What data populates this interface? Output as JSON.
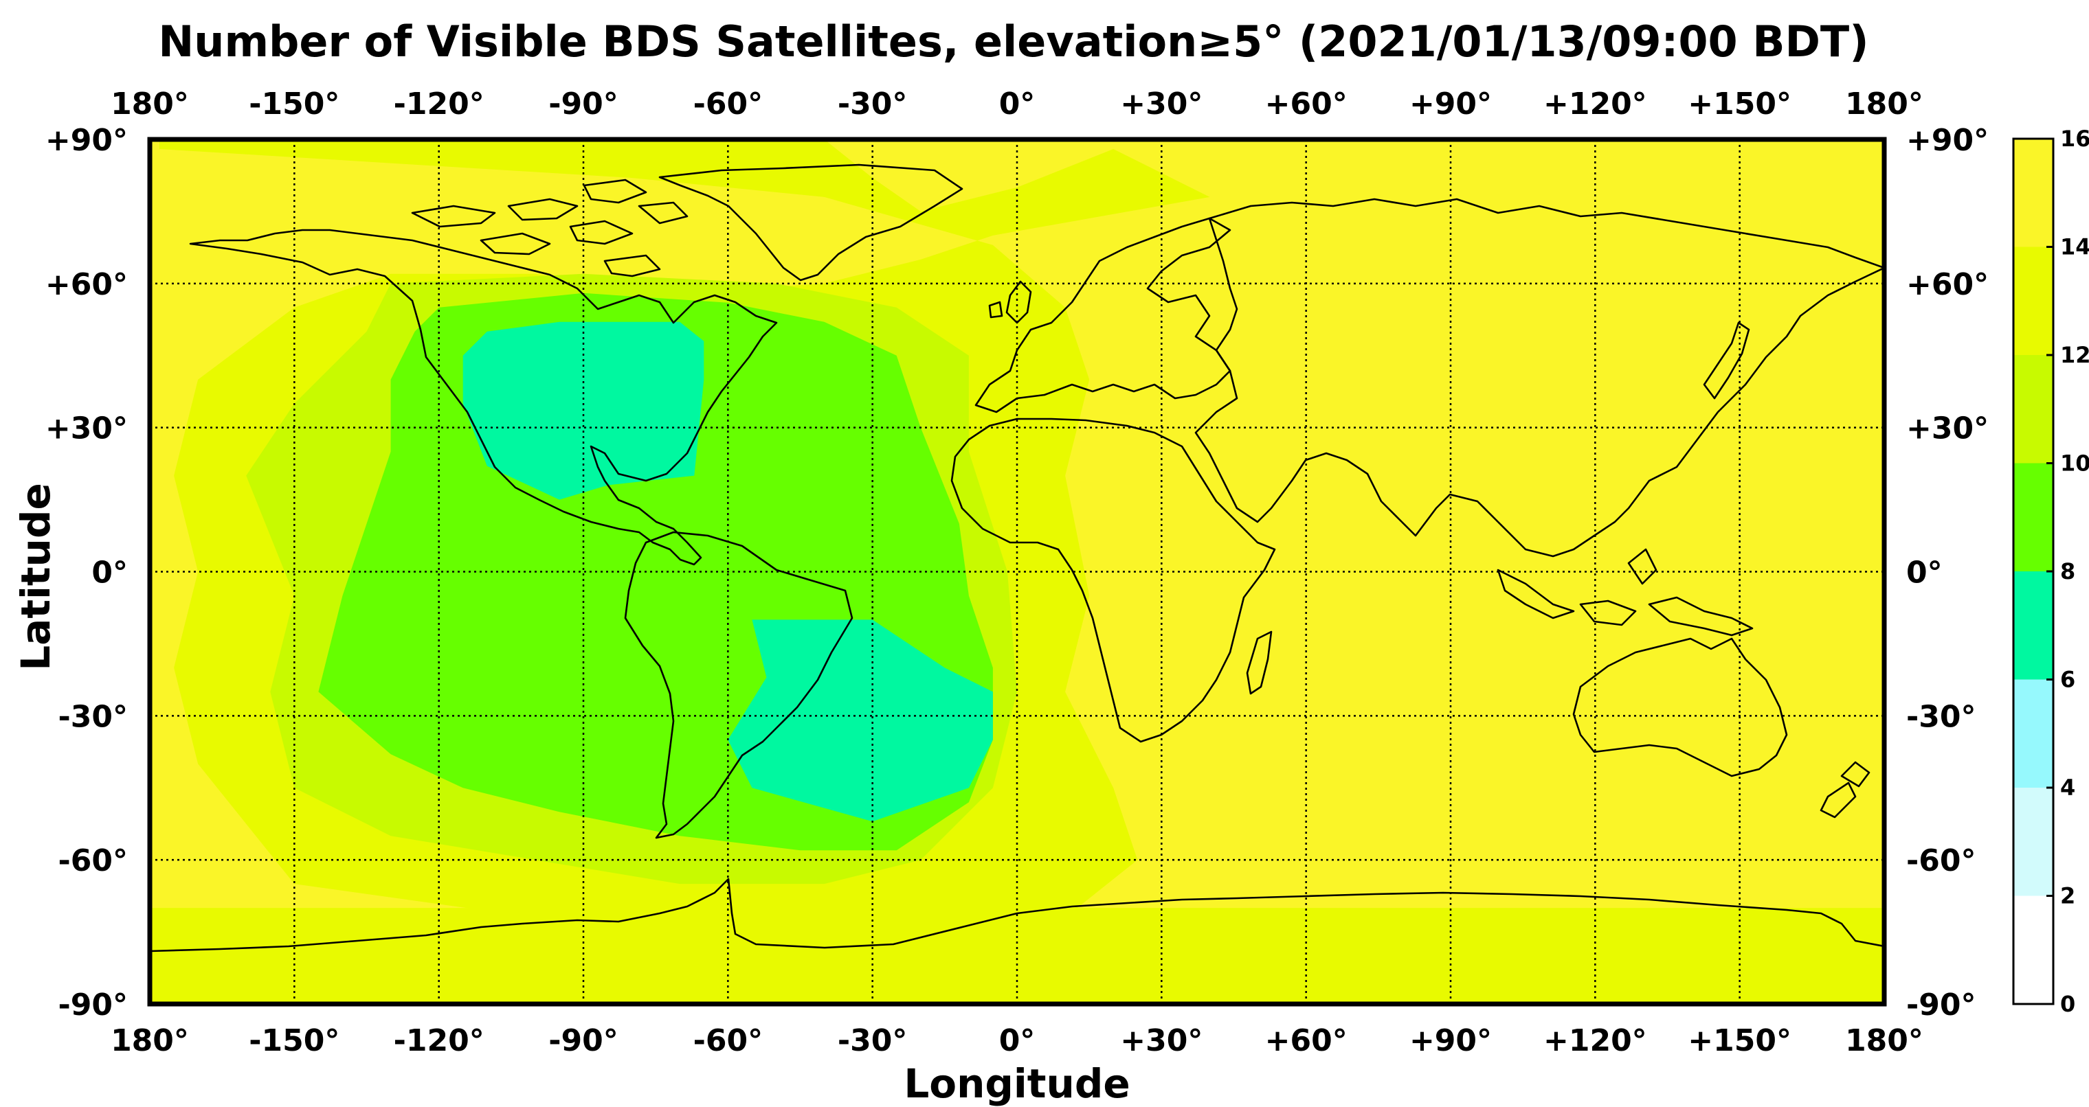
{
  "title": "Number of Visible BDS Satellites, elevation≥5° (2021/01/13/09:00 BDT)",
  "xlabel": "Longitude",
  "ylabel": "Latitude",
  "lon_ticks": [
    {
      "value": -180,
      "label": "180°"
    },
    {
      "value": -150,
      "label": "-150°"
    },
    {
      "value": -120,
      "label": "-120°"
    },
    {
      "value": -90,
      "label": "-90°"
    },
    {
      "value": -60,
      "label": "-60°"
    },
    {
      "value": -30,
      "label": "-30°"
    },
    {
      "value": 0,
      "label": "0°"
    },
    {
      "value": 30,
      "label": "+30°"
    },
    {
      "value": 60,
      "label": "+60°"
    },
    {
      "value": 90,
      "label": "+90°"
    },
    {
      "value": 120,
      "label": "+120°"
    },
    {
      "value": 150,
      "label": "+150°"
    },
    {
      "value": 180,
      "label": "180°"
    }
  ],
  "lat_ticks": [
    {
      "value": 90,
      "label": "+90°"
    },
    {
      "value": 60,
      "label": "+60°"
    },
    {
      "value": 30,
      "label": "+30°"
    },
    {
      "value": 0,
      "label": "0°"
    },
    {
      "value": -30,
      "label": "-30°"
    },
    {
      "value": -60,
      "label": "-60°"
    },
    {
      "value": -90,
      "label": "-90°"
    }
  ],
  "colorbar": {
    "range": [
      0,
      16
    ],
    "ticks": [
      "0",
      "2",
      "4",
      "6",
      "8",
      "10",
      "12",
      "14",
      "16"
    ],
    "bins": [
      {
        "min": 0,
        "max": 2,
        "color": "#ffffff"
      },
      {
        "min": 2,
        "max": 4,
        "color": "#d2fbfc"
      },
      {
        "min": 4,
        "max": 6,
        "color": "#96f9fd"
      },
      {
        "min": 6,
        "max": 8,
        "color": "#00f8a0"
      },
      {
        "min": 8,
        "max": 10,
        "color": "#66ff00"
      },
      {
        "min": 10,
        "max": 12,
        "color": "#c8fa00"
      },
      {
        "min": 12,
        "max": 14,
        "color": "#e8fa00"
      },
      {
        "min": 14,
        "max": 16,
        "color": "#faf528"
      }
    ]
  },
  "chart_data": {
    "type": "heatmap",
    "title": "Number of Visible BDS Satellites, elevation≥5° (2021/01/13/09:00 BDT)",
    "xlabel": "Longitude",
    "ylabel": "Latitude",
    "xlim": [
      -180,
      180
    ],
    "ylim": [
      -90,
      90
    ],
    "grid": true,
    "projection": "equirectangular with coastlines",
    "colorbar_range": [
      0,
      16
    ],
    "regions": [
      {
        "description": "background",
        "value": 15
      },
      {
        "value": 13,
        "polygon": [
          [
            -178,
            90
          ],
          [
            -40,
            90
          ],
          [
            -30,
            82
          ],
          [
            -20,
            75
          ],
          [
            0,
            80
          ],
          [
            20,
            88
          ],
          [
            40,
            78
          ],
          [
            -5,
            70
          ],
          [
            -20,
            65
          ],
          [
            -40,
            60
          ],
          [
            -70,
            58
          ],
          [
            -100,
            62
          ],
          [
            -130,
            62
          ],
          [
            -150,
            55
          ],
          [
            -170,
            40
          ],
          [
            -175,
            20
          ],
          [
            -170,
            0
          ],
          [
            -175,
            -20
          ],
          [
            -170,
            -40
          ],
          [
            -150,
            -65
          ],
          [
            -100,
            -72
          ],
          [
            -60,
            -80
          ],
          [
            -20,
            -75
          ],
          [
            10,
            -72
          ],
          [
            25,
            -60
          ],
          [
            20,
            -45
          ],
          [
            10,
            -25
          ],
          [
            15,
            -5
          ],
          [
            10,
            20
          ],
          [
            15,
            40
          ],
          [
            10,
            55
          ],
          [
            -5,
            68
          ],
          [
            -40,
            78
          ],
          [
            -80,
            82
          ],
          [
            -178,
            88
          ]
        ]
      },
      {
        "value": 13,
        "polygon": [
          [
            -180,
            -70
          ],
          [
            180,
            -70
          ],
          [
            180,
            -90
          ],
          [
            -180,
            -90
          ]
        ]
      },
      {
        "value": 11,
        "polygon": [
          [
            -130,
            60
          ],
          [
            -90,
            62
          ],
          [
            -50,
            60
          ],
          [
            -25,
            55
          ],
          [
            -10,
            45
          ],
          [
            -10,
            25
          ],
          [
            -2,
            0
          ],
          [
            0,
            -25
          ],
          [
            -5,
            -45
          ],
          [
            -20,
            -60
          ],
          [
            -40,
            -65
          ],
          [
            -70,
            -65
          ],
          [
            -100,
            -60
          ],
          [
            -130,
            -55
          ],
          [
            -150,
            -45
          ],
          [
            -155,
            -25
          ],
          [
            -150,
            -5
          ],
          [
            -160,
            20
          ],
          [
            -150,
            35
          ],
          [
            -135,
            50
          ]
        ]
      },
      {
        "value": 9,
        "polygon": [
          [
            -120,
            55
          ],
          [
            -90,
            58
          ],
          [
            -60,
            56
          ],
          [
            -40,
            52
          ],
          [
            -25,
            45
          ],
          [
            -20,
            30
          ],
          [
            -12,
            10
          ],
          [
            -10,
            -5
          ],
          [
            -5,
            -20
          ],
          [
            -5,
            -35
          ],
          [
            -10,
            -48
          ],
          [
            -25,
            -58
          ],
          [
            -45,
            -58
          ],
          [
            -70,
            -55
          ],
          [
            -95,
            -50
          ],
          [
            -115,
            -45
          ],
          [
            -130,
            -38
          ],
          [
            -145,
            -25
          ],
          [
            -140,
            -5
          ],
          [
            -135,
            10
          ],
          [
            -130,
            25
          ],
          [
            -130,
            40
          ],
          [
            -125,
            50
          ]
        ]
      },
      {
        "value": 7,
        "polygon": [
          [
            -110,
            50
          ],
          [
            -95,
            52
          ],
          [
            -70,
            52
          ],
          [
            -65,
            48
          ],
          [
            -65,
            40
          ],
          [
            -67,
            20
          ],
          [
            -85,
            18
          ],
          [
            -95,
            15
          ],
          [
            -110,
            22
          ],
          [
            -115,
            35
          ],
          [
            -115,
            45
          ]
        ]
      },
      {
        "value": 7,
        "polygon": [
          [
            -55,
            -10
          ],
          [
            -30,
            -10
          ],
          [
            -15,
            -20
          ],
          [
            -5,
            -25
          ],
          [
            -5,
            -35
          ],
          [
            -10,
            -45
          ],
          [
            -30,
            -52
          ],
          [
            -55,
            -45
          ],
          [
            -60,
            -35
          ],
          [
            -52,
            -22
          ]
        ]
      }
    ]
  }
}
